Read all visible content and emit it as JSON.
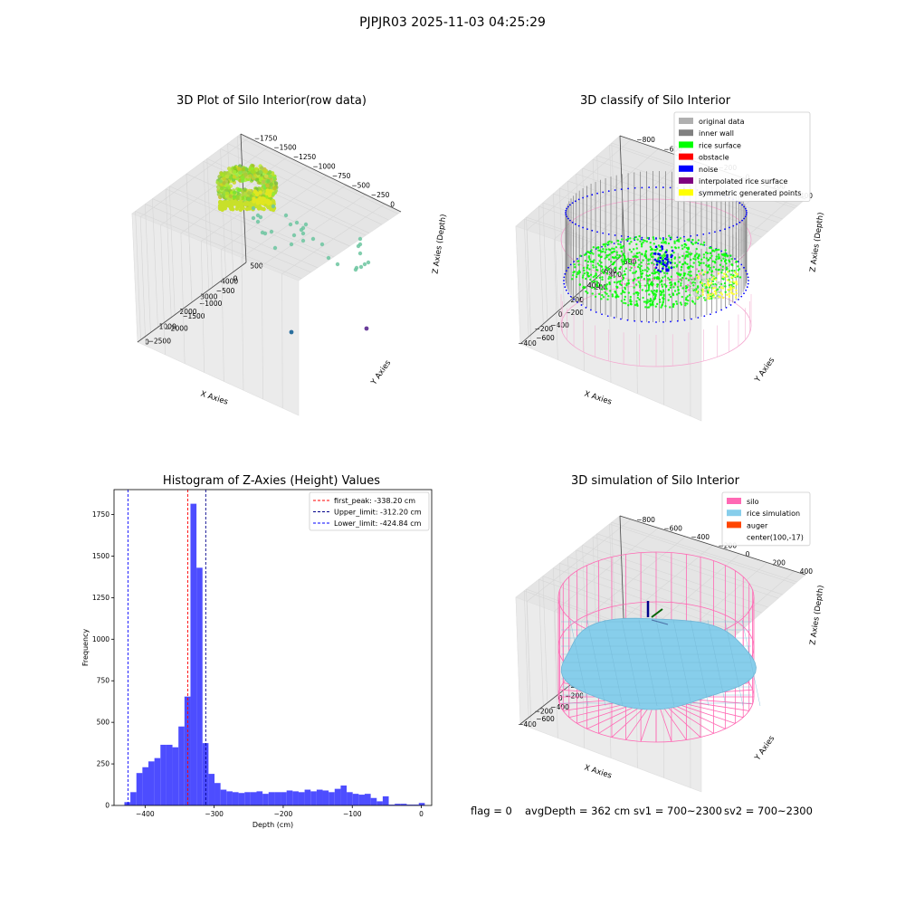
{
  "figure_title": "PJPJR03 2025-11-03 04:25:29",
  "chart_data": [
    {
      "type": "scatter",
      "title": "3D Plot of Silo Interior(row data)",
      "xlabel": "X Axies",
      "ylabel": "Y Axies",
      "zlabel": "Z Axies (Depth)",
      "x_ticks": [
        "0",
        "1000",
        "2000",
        "3000",
        "4000"
      ],
      "y_ticks": [
        "500",
        "0",
        "−500",
        "−1000",
        "−1500",
        "−2000",
        "−2500"
      ],
      "z_ticks": [
        "0",
        "−250",
        "−500",
        "−750",
        "−1000",
        "−1250",
        "−1500",
        "−1750"
      ],
      "colors": {
        "main": "#9acd32",
        "scatter": "#6cc5a0",
        "outlier_blue": "#2a6f9e",
        "outlier_purple": "#6a3d9a"
      }
    },
    {
      "type": "scatter",
      "title": "3D classify of Silo Interior",
      "xlabel": "X Axies",
      "ylabel": "Y Axies",
      "zlabel": "Z Axies (Depth)",
      "x_ticks": [
        "−400",
        "−200",
        "0",
        "200",
        "400",
        "600"
      ],
      "y_ticks": [
        "600",
        "400",
        "200",
        "0",
        "−200",
        "−400",
        "−600"
      ],
      "z_ticks": [
        "400",
        "200",
        "0",
        "−200",
        "−400",
        "−600",
        "−800"
      ],
      "legend": [
        {
          "label": "original data",
          "color": "#b0b0b0"
        },
        {
          "label": "inner wall",
          "color": "#808080"
        },
        {
          "label": "rice surface",
          "color": "#00ff00"
        },
        {
          "label": "obstacle",
          "color": "#ff0000"
        },
        {
          "label": "noise",
          "color": "#0000ff"
        },
        {
          "label": "interpolated rice surface",
          "color": "#800080"
        },
        {
          "label": "symmetric generated points",
          "color": "#ffff00"
        }
      ],
      "legend_position": "top-right"
    },
    {
      "type": "bar",
      "title": "Histogram of Z-Axies (Height) Values",
      "xlabel": "Depth (cm)",
      "ylabel": "Frequency",
      "x_range": [
        -445,
        15
      ],
      "ylim": [
        0,
        1900
      ],
      "x_ticks": [
        -400,
        -300,
        -200,
        -100,
        0
      ],
      "y_ticks": [
        0,
        250,
        500,
        750,
        1000,
        1250,
        1500,
        1750
      ],
      "bin_width": 8.7,
      "bins": [
        [
          -430,
          20
        ],
        [
          -421.3,
          80
        ],
        [
          -412.6,
          195
        ],
        [
          -403.9,
          230
        ],
        [
          -395.2,
          265
        ],
        [
          -386.5,
          285
        ],
        [
          -377.8,
          365
        ],
        [
          -369.1,
          365
        ],
        [
          -360.4,
          350
        ],
        [
          -351.7,
          475
        ],
        [
          -343,
          655
        ],
        [
          -334.3,
          1815
        ],
        [
          -325.6,
          1430
        ],
        [
          -316.9,
          375
        ],
        [
          -308.2,
          190
        ],
        [
          -299.5,
          135
        ],
        [
          -290.8,
          95
        ],
        [
          -282.1,
          85
        ],
        [
          -273.4,
          80
        ],
        [
          -264.7,
          75
        ],
        [
          -256,
          80
        ],
        [
          -247.3,
          80
        ],
        [
          -238.6,
          85
        ],
        [
          -229.9,
          70
        ],
        [
          -221.2,
          80
        ],
        [
          -212.5,
          80
        ],
        [
          -203.8,
          80
        ],
        [
          -195.1,
          90
        ],
        [
          -186.4,
          85
        ],
        [
          -177.7,
          80
        ],
        [
          -169,
          95
        ],
        [
          -160.3,
          85
        ],
        [
          -151.6,
          95
        ],
        [
          -142.9,
          90
        ],
        [
          -134.2,
          80
        ],
        [
          -125.5,
          100
        ],
        [
          -116.8,
          120
        ],
        [
          -108.1,
          80
        ],
        [
          -99.4,
          70
        ],
        [
          -90.7,
          65
        ],
        [
          -82,
          70
        ],
        [
          -73.3,
          45
        ],
        [
          -64.6,
          25
        ],
        [
          -55.9,
          55
        ],
        [
          -47.2,
          5
        ],
        [
          -38.5,
          10
        ],
        [
          -29.8,
          10
        ],
        [
          -21.1,
          5
        ],
        [
          -12.4,
          5
        ],
        [
          -3.7,
          15
        ]
      ],
      "bar_color": "#4d4dff",
      "lines": [
        {
          "label": "first_peak: -338.20 cm",
          "value": -338.2,
          "color": "#ff0000"
        },
        {
          "label": "Upper_limit: -312.20 cm",
          "value": -312.2,
          "color": "#00008b"
        },
        {
          "label": "Lower_limit: -424.84 cm",
          "value": -424.84,
          "color": "#0000ff"
        }
      ],
      "legend_position": "top-right"
    },
    {
      "type": "scatter",
      "title": "3D simulation of Silo Interior",
      "xlabel": "X Axies",
      "ylabel": "Y Axies",
      "zlabel": "Z Axies (Depth)",
      "x_ticks": [
        "−400",
        "−200",
        "0",
        "200",
        "400",
        "600"
      ],
      "y_ticks": [
        "600",
        "400",
        "200",
        "0",
        "−200",
        "−400",
        "−600"
      ],
      "z_ticks": [
        "400",
        "200",
        "0",
        "−200",
        "−400",
        "−600",
        "−800"
      ],
      "legend": [
        {
          "label": "silo",
          "color": "#ff69b4"
        },
        {
          "label": "rice simulation",
          "color": "#87ceeb"
        },
        {
          "label": "auger",
          "color": "#ff4500"
        },
        {
          "label": "center(100,-17)",
          "color": ""
        }
      ],
      "legend_position": "top-right"
    }
  ],
  "status": {
    "flag": "flag = 0",
    "avg_depth": "avgDepth = 362 cm",
    "sv1": "sv1 = 700~2300",
    "sv2": "sv2 = 700~2300"
  }
}
